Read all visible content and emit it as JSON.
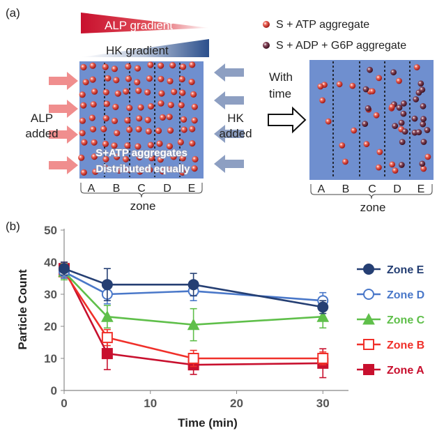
{
  "panel_a": {
    "label": "(a)",
    "alp_gradient": "ALP gradient",
    "hk_gradient": "HK gradient",
    "alp_added_line1": "ALP",
    "alp_added_line2": "added",
    "hk_added_line1": "HK",
    "hk_added_line2": "added",
    "overlay_line1": "S+ATP aggregates",
    "overlay_line2": "Distributed equally",
    "with_time_line1": "With",
    "with_time_line2": "time",
    "legend_atp": "S + ATP aggregate",
    "legend_adp": "S + ADP + G6P aggregate",
    "zones": [
      "A",
      "B",
      "C",
      "D",
      "E"
    ],
    "zone_label": "zone",
    "colors": {
      "box": "#6f8fcf",
      "particle_red": "#d9372f",
      "particle_dark": "#5a2036",
      "alp_gradient": "#c8102e",
      "hk_gradient": "#2b4f8c",
      "arrow_red": "#f08e8e",
      "arrow_blue": "#8d9fc2"
    }
  },
  "panel_b": {
    "label": "(b)"
  },
  "chart_data": {
    "type": "line",
    "x": [
      0,
      5,
      15,
      30
    ],
    "xlabel": "Time (min)",
    "ylabel": "Particle Count",
    "xlim": [
      0,
      32
    ],
    "ylim": [
      0,
      50
    ],
    "xticks": [
      0,
      10,
      20,
      30
    ],
    "yticks": [
      0,
      10,
      20,
      30,
      40,
      50
    ],
    "grid": false,
    "legend_position": "right",
    "series": [
      {
        "name": "Zone E",
        "color": "#253f73",
        "marker": "circle-filled",
        "values": [
          38,
          33,
          33,
          26
        ],
        "errors": [
          2,
          5,
          3.5,
          2
        ]
      },
      {
        "name": "Zone D",
        "color": "#4a78c9",
        "marker": "circle-open",
        "values": [
          37,
          30,
          31,
          28
        ],
        "errors": [
          2,
          3,
          3,
          2.5
        ]
      },
      {
        "name": "Zone C",
        "color": "#5fbf4a",
        "marker": "triangle-filled",
        "values": [
          37,
          23,
          20.5,
          23
        ],
        "errors": [
          2.5,
          3.5,
          5,
          3.5
        ]
      },
      {
        "name": "Zone B",
        "color": "#f0302a",
        "marker": "square-open",
        "values": [
          37,
          16.5,
          10,
          10
        ],
        "errors": [
          2,
          2.5,
          2.5,
          2
        ]
      },
      {
        "name": "Zone A",
        "color": "#c8102e",
        "marker": "square-filled",
        "values": [
          38,
          11.5,
          8,
          8.5
        ],
        "errors": [
          2,
          5,
          3,
          4.5
        ]
      }
    ]
  }
}
